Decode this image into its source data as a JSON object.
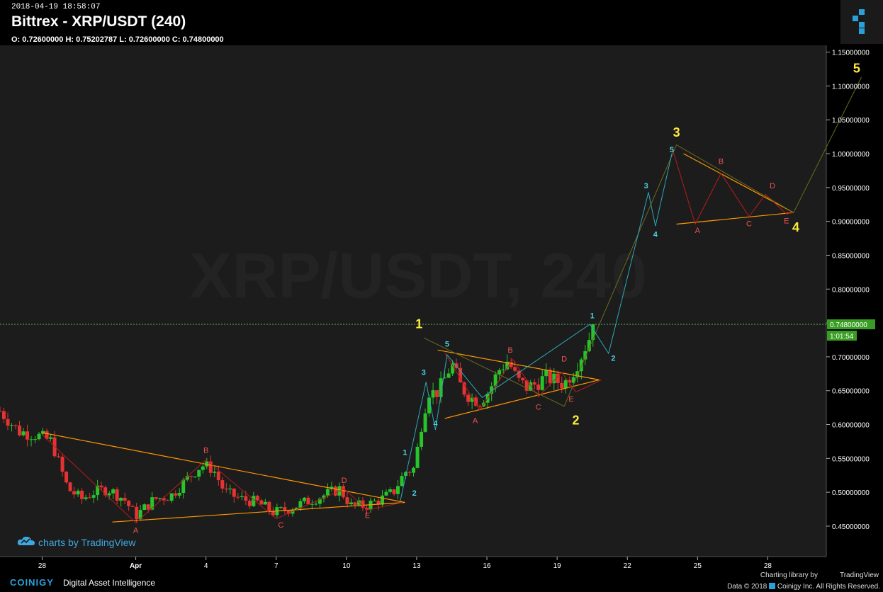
{
  "header": {
    "timestamp": "2018-04-19 18:58:07",
    "title": "Bittrex - XRP/USDT (240)",
    "ohlc": "O: 0.72600000 H: 0.75202787 L: 0.72600000 C: 0.74800000",
    "watermark": "XRP/USDT, 240"
  },
  "footer": {
    "brand": "COINIGY",
    "tagline": "Digital Asset Intelligence",
    "charting_library": "Charting library by",
    "tradingview": "TradingView",
    "copyright": "Data © 2018",
    "copyright_rest": "Coinigy Inc. All Rights Reserved.",
    "charts_by": "charts by TradingView"
  },
  "colors": {
    "background": "#1c1c1c",
    "up_candle": "#27c42a",
    "down_candle": "#e53232",
    "trendline": "#ff9800",
    "wave_major": "#ffeb3b",
    "wave_minor": "#4dd0e1",
    "wave_abc": "#ef5350",
    "projection_line": "#6b6b1e",
    "price_line": "#5cb85c"
  },
  "chart_data": {
    "type": "candlestick",
    "symbol": "XRP/USDT",
    "exchange": "Bittrex",
    "interval": "240",
    "x_tick_labels": [
      "28",
      "Apr",
      "4",
      "7",
      "10",
      "13",
      "16",
      "19",
      "22",
      "25",
      "28"
    ],
    "x_tick_days": [
      -4,
      0,
      3,
      6,
      9,
      12,
      15,
      18,
      21,
      24,
      27
    ],
    "y_tick_labels": [
      "1.15000000",
      "1.10000000",
      "1.05000000",
      "1.00000000",
      "0.95000000",
      "0.90000000",
      "0.85000000",
      "0.80000000",
      "0.75000000",
      "0.70000000",
      "0.65000000",
      "0.60000000",
      "0.55000000",
      "0.50000000",
      "0.45000000"
    ],
    "y_ticks": [
      1.15,
      1.1,
      1.05,
      1.0,
      0.95,
      0.9,
      0.85,
      0.8,
      0.75,
      0.7,
      0.65,
      0.6,
      0.55,
      0.5,
      0.45
    ],
    "ylim": [
      0.405,
      1.16
    ],
    "xlim_days": [
      -5.8,
      29.5
    ],
    "current_price": "0.74800000",
    "current_price_value": 0.748,
    "countdown": "1:01:54",
    "closes_path": [
      [
        -5.8,
        0.62
      ],
      [
        -5.0,
        0.59
      ],
      [
        -4.3,
        0.585
      ],
      [
        -3.6,
        0.575
      ],
      [
        -2.9,
        0.505
      ],
      [
        -2.3,
        0.49
      ],
      [
        -1.8,
        0.5
      ],
      [
        -1.2,
        0.505
      ],
      [
        -0.5,
        0.49
      ],
      [
        0,
        0.465
      ],
      [
        0.8,
        0.49
      ],
      [
        1.5,
        0.495
      ],
      [
        2.2,
        0.52
      ],
      [
        2.8,
        0.54
      ],
      [
        3.3,
        0.535
      ],
      [
        3.8,
        0.5
      ],
      [
        4.5,
        0.49
      ],
      [
        5.2,
        0.485
      ],
      [
        5.9,
        0.47
      ],
      [
        6.5,
        0.475
      ],
      [
        7.2,
        0.485
      ],
      [
        8.0,
        0.495
      ],
      [
        8.7,
        0.505
      ],
      [
        9.2,
        0.48
      ],
      [
        9.8,
        0.48
      ],
      [
        10.5,
        0.49
      ],
      [
        11.0,
        0.5
      ],
      [
        11.5,
        0.53
      ],
      [
        11.9,
        0.535
      ],
      [
        12.2,
        0.6
      ],
      [
        12.5,
        0.65
      ],
      [
        12.8,
        0.645
      ],
      [
        13.1,
        0.66
      ],
      [
        13.5,
        0.69
      ],
      [
        13.9,
        0.655
      ],
      [
        14.3,
        0.64
      ],
      [
        14.7,
        0.635
      ],
      [
        15.1,
        0.65
      ],
      [
        15.5,
        0.68
      ],
      [
        15.9,
        0.695
      ],
      [
        16.3,
        0.665
      ],
      [
        16.7,
        0.655
      ],
      [
        17.1,
        0.66
      ],
      [
        17.5,
        0.67
      ],
      [
        17.9,
        0.665
      ],
      [
        18.3,
        0.66
      ],
      [
        18.7,
        0.68
      ],
      [
        19.0,
        0.7
      ],
      [
        19.4,
        0.73
      ],
      [
        19.6,
        0.748
      ]
    ],
    "triangle_1": {
      "upper": [
        [
          -4,
          0.588
        ],
        [
          11.5,
          0.485
        ]
      ],
      "lower": [
        [
          -1,
          0.456
        ],
        [
          11.5,
          0.485
        ]
      ]
    },
    "triangle_2": {
      "upper": [
        [
          12.9,
          0.71
        ],
        [
          19.8,
          0.666
        ]
      ],
      "lower": [
        [
          13.2,
          0.609
        ],
        [
          19.8,
          0.666
        ]
      ]
    },
    "triangle_3": {
      "upper": [
        [
          23.4,
          1.0
        ],
        [
          28.1,
          0.913
        ]
      ],
      "lower": [
        [
          23.1,
          0.896
        ],
        [
          28.1,
          0.913
        ]
      ]
    },
    "major_path": [
      [
        12.3,
        0.728
      ],
      [
        18.3,
        0.627
      ],
      [
        23.1,
        1.013
      ],
      [
        28.1,
        0.913
      ],
      [
        31.0,
        1.113
      ]
    ],
    "impulse_path": [
      [
        11.3,
        0.487
      ],
      [
        12.4,
        0.663
      ],
      [
        12.8,
        0.592
      ],
      [
        13.3,
        0.703
      ],
      [
        14.8,
        0.64
      ],
      [
        19.4,
        0.748
      ],
      [
        20.2,
        0.705
      ],
      [
        21.9,
        0.943
      ],
      [
        22.2,
        0.893
      ],
      [
        22.9,
        1.0
      ]
    ],
    "abc1_path": [
      [
        -4,
        0.585
      ],
      [
        0,
        0.455
      ],
      [
        3.0,
        0.548
      ],
      [
        6.0,
        0.461
      ],
      [
        8.9,
        0.505
      ],
      [
        9.9,
        0.474
      ],
      [
        11.4,
        0.485
      ]
    ],
    "abc2_path": [
      [
        13.2,
        0.706
      ],
      [
        14.7,
        0.621
      ],
      [
        16.1,
        0.696
      ],
      [
        17.2,
        0.641
      ],
      [
        18.2,
        0.677
      ],
      [
        18.8,
        0.648
      ],
      [
        19.9,
        0.666
      ]
    ],
    "abc3_path": [
      [
        22.9,
        1.01
      ],
      [
        23.9,
        0.896
      ],
      [
        25.0,
        0.971
      ],
      [
        26.2,
        0.907
      ],
      [
        26.9,
        0.94
      ],
      [
        27.8,
        0.911
      ],
      [
        28.1,
        0.913
      ]
    ],
    "labels": [
      {
        "text": "1",
        "x": 12.1,
        "y": 0.742,
        "group": "major"
      },
      {
        "text": "2",
        "x": 18.8,
        "y": 0.6,
        "group": "major"
      },
      {
        "text": "3",
        "x": 23.1,
        "y": 1.025,
        "group": "major"
      },
      {
        "text": "4",
        "x": 28.2,
        "y": 0.885,
        "group": "major"
      },
      {
        "text": "5",
        "x": 30.8,
        "y": 1.12,
        "group": "major"
      },
      {
        "text": "1",
        "x": 11.5,
        "y": 0.555,
        "group": "minor"
      },
      {
        "text": "2",
        "x": 11.9,
        "y": 0.495,
        "group": "minor"
      },
      {
        "text": "3",
        "x": 12.3,
        "y": 0.673,
        "group": "minor"
      },
      {
        "text": "4",
        "x": 12.8,
        "y": 0.598,
        "group": "minor"
      },
      {
        "text": "5",
        "x": 13.3,
        "y": 0.715,
        "group": "minor"
      },
      {
        "text": "1",
        "x": 19.5,
        "y": 0.757,
        "group": "minor"
      },
      {
        "text": "2",
        "x": 20.4,
        "y": 0.694,
        "group": "minor"
      },
      {
        "text": "3",
        "x": 21.8,
        "y": 0.949,
        "group": "minor"
      },
      {
        "text": "4",
        "x": 22.2,
        "y": 0.877,
        "group": "minor"
      },
      {
        "text": "5",
        "x": 22.9,
        "y": 1.002,
        "group": "minor"
      },
      {
        "text": "A",
        "x": 0,
        "y": 0.44,
        "group": "abc"
      },
      {
        "text": "B",
        "x": 3.0,
        "y": 0.558,
        "group": "abc"
      },
      {
        "text": "C",
        "x": 6.2,
        "y": 0.448,
        "group": "abc"
      },
      {
        "text": "D",
        "x": 8.9,
        "y": 0.514,
        "group": "abc"
      },
      {
        "text": "E",
        "x": 9.9,
        "y": 0.462,
        "group": "abc"
      },
      {
        "text": "A",
        "x": 14.5,
        "y": 0.602,
        "group": "abc"
      },
      {
        "text": "B",
        "x": 16.0,
        "y": 0.706,
        "group": "abc"
      },
      {
        "text": "C",
        "x": 17.2,
        "y": 0.622,
        "group": "abc"
      },
      {
        "text": "D",
        "x": 18.3,
        "y": 0.693,
        "group": "abc"
      },
      {
        "text": "E",
        "x": 18.6,
        "y": 0.634,
        "group": "abc"
      },
      {
        "text": "A",
        "x": 24.0,
        "y": 0.883,
        "group": "abc"
      },
      {
        "text": "B",
        "x": 25.0,
        "y": 0.985,
        "group": "abc"
      },
      {
        "text": "C",
        "x": 26.2,
        "y": 0.893,
        "group": "abc"
      },
      {
        "text": "D",
        "x": 27.2,
        "y": 0.949,
        "group": "abc"
      },
      {
        "text": "E",
        "x": 27.8,
        "y": 0.897,
        "group": "abc"
      }
    ]
  }
}
